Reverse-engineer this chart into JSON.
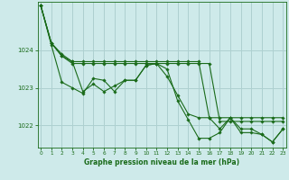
{
  "xlabel": "Graphe pression niveau de la mer (hPa)",
  "bg_color": "#ceeaea",
  "grid_color": "#aed0d0",
  "line_color": "#1a6b1a",
  "x_ticks": [
    0,
    1,
    2,
    3,
    4,
    5,
    6,
    7,
    8,
    9,
    10,
    11,
    12,
    13,
    14,
    15,
    16,
    17,
    18,
    19,
    20,
    21,
    22,
    23
  ],
  "ylim": [
    1021.4,
    1025.3
  ],
  "yticks": [
    1022,
    1023,
    1024
  ],
  "series": [
    [
      1025.2,
      1024.2,
      1023.85,
      1023.65,
      1023.65,
      1023.65,
      1023.65,
      1023.65,
      1023.65,
      1023.65,
      1023.65,
      1023.65,
      1023.65,
      1023.65,
      1023.65,
      1023.65,
      1023.65,
      1022.1,
      1022.1,
      1022.1,
      1022.1,
      1022.1,
      1022.1,
      1022.1
    ],
    [
      1025.2,
      1024.2,
      1023.85,
      1023.7,
      1023.7,
      1023.7,
      1023.7,
      1023.7,
      1023.7,
      1023.7,
      1023.7,
      1023.7,
      1023.7,
      1023.7,
      1023.7,
      1023.7,
      1022.2,
      1022.2,
      1022.2,
      1022.2,
      1022.2,
      1022.2,
      1022.2,
      1022.2
    ],
    [
      1025.2,
      1024.2,
      1023.9,
      1023.7,
      1022.9,
      1023.1,
      1022.9,
      1023.05,
      1023.2,
      1023.2,
      1023.6,
      1023.65,
      1023.3,
      1022.8,
      1022.3,
      1022.2,
      1022.2,
      1021.9,
      1022.2,
      1021.9,
      1021.9,
      1021.75,
      1021.55,
      1021.9
    ],
    [
      1025.2,
      1024.15,
      1023.15,
      1023.0,
      1022.85,
      1023.25,
      1023.2,
      1022.9,
      1023.2,
      1023.2,
      1023.6,
      1023.65,
      1023.5,
      1022.65,
      1022.15,
      1021.65,
      1021.65,
      1021.8,
      1022.2,
      1021.8,
      1021.8,
      1021.75,
      1021.55,
      1021.9
    ]
  ]
}
